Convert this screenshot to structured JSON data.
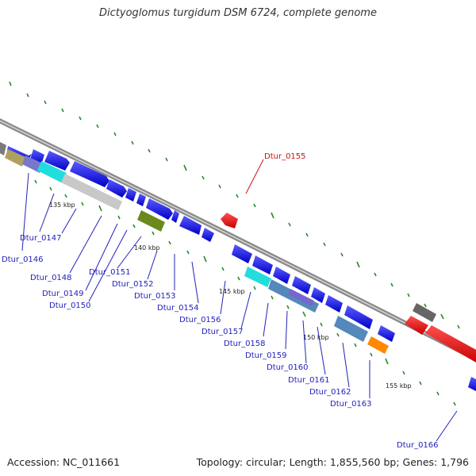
{
  "header": {
    "title": "Dictyoglomus turgidum DSM 6724, complete genome"
  },
  "footer": {
    "accession": "Accession: NC_011661",
    "stats": "Topology: circular; Length: 1,855,560 bp; Genes: 1,796"
  },
  "scale_labels": {
    "k135": "135 kbp",
    "k140": "140 kbp",
    "k145": "145 kbp",
    "k150": "150 kbp",
    "k155": "155 kbp"
  },
  "genes": {
    "g0146": "Dtur_0146",
    "g0147": "Dtur_0147",
    "g0148": "Dtur_0148",
    "g0149": "Dtur_0149",
    "g0150": "Dtur_0150",
    "g0151": "Dtur_0151",
    "g0152": "Dtur_0152",
    "g0153": "Dtur_0153",
    "g0154": "Dtur_0154",
    "g0155": "Dtur_0155",
    "g0156": "Dtur_0156",
    "g0157": "Dtur_0157",
    "g0158": "Dtur_0158",
    "g0159": "Dtur_0159",
    "g0160": "Dtur_0160",
    "g0161": "Dtur_0161",
    "g0162": "Dtur_0162",
    "g0163": "Dtur_0163",
    "g0166": "Dtur_0166"
  },
  "colors": {
    "backbone": "#8a8a8a",
    "forward_strand": "#1a1aee",
    "reverse_strand": "#e01010",
    "label_blue": "#2222bb",
    "label_red": "#cc1111",
    "tick_green": "#2a8a2a"
  }
}
